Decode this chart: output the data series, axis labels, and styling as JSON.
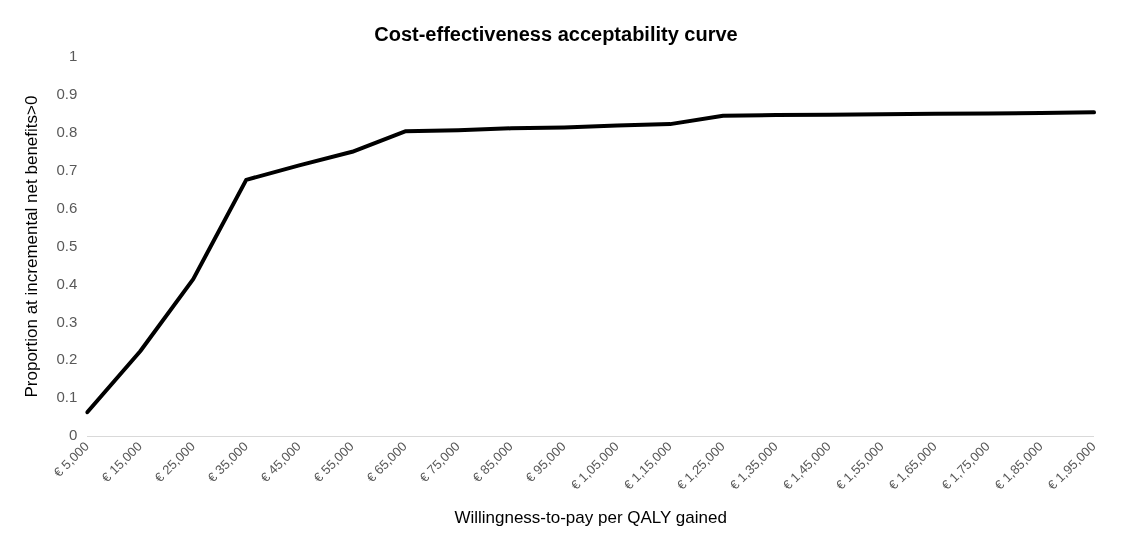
{
  "chart_data": {
    "type": "line",
    "title": "Cost-effectiveness acceptability curve",
    "xlabel": "Willingness-to-pay per QALY gained",
    "ylabel": "Proportion at incremental net benefits>0",
    "categories": [
      "€ 5,000",
      "€ 15,000",
      "€ 25,000",
      "€ 35,000",
      "€ 45,000",
      "€ 55,000",
      "€ 65,000",
      "€ 75,000",
      "€ 85,000",
      "€ 95,000",
      "€ 1,05,000",
      "€ 1,15,000",
      "€ 1,25,000",
      "€ 1,35,000",
      "€ 1,45,000",
      "€ 1,55,000",
      "€ 1,65,000",
      "€ 1,75,000",
      "€ 1,85,000",
      "€ 1,95,000"
    ],
    "series": [
      {
        "color": "#000000",
        "values": [
          0.063,
          0.224,
          0.414,
          0.676,
          0.714,
          0.75,
          0.804,
          0.807,
          0.812,
          0.814,
          0.819,
          0.823,
          0.845,
          0.847,
          0.848,
          0.849,
          0.85,
          0.851,
          0.852,
          0.854
        ]
      }
    ],
    "ylim": [
      0,
      1
    ],
    "yticks": [
      0,
      0.1,
      0.2,
      0.3,
      0.4,
      0.5,
      0.6,
      0.7,
      0.8,
      0.9,
      1
    ],
    "grid": false,
    "legend": false,
    "marker": "none",
    "line_style": "solid"
  }
}
